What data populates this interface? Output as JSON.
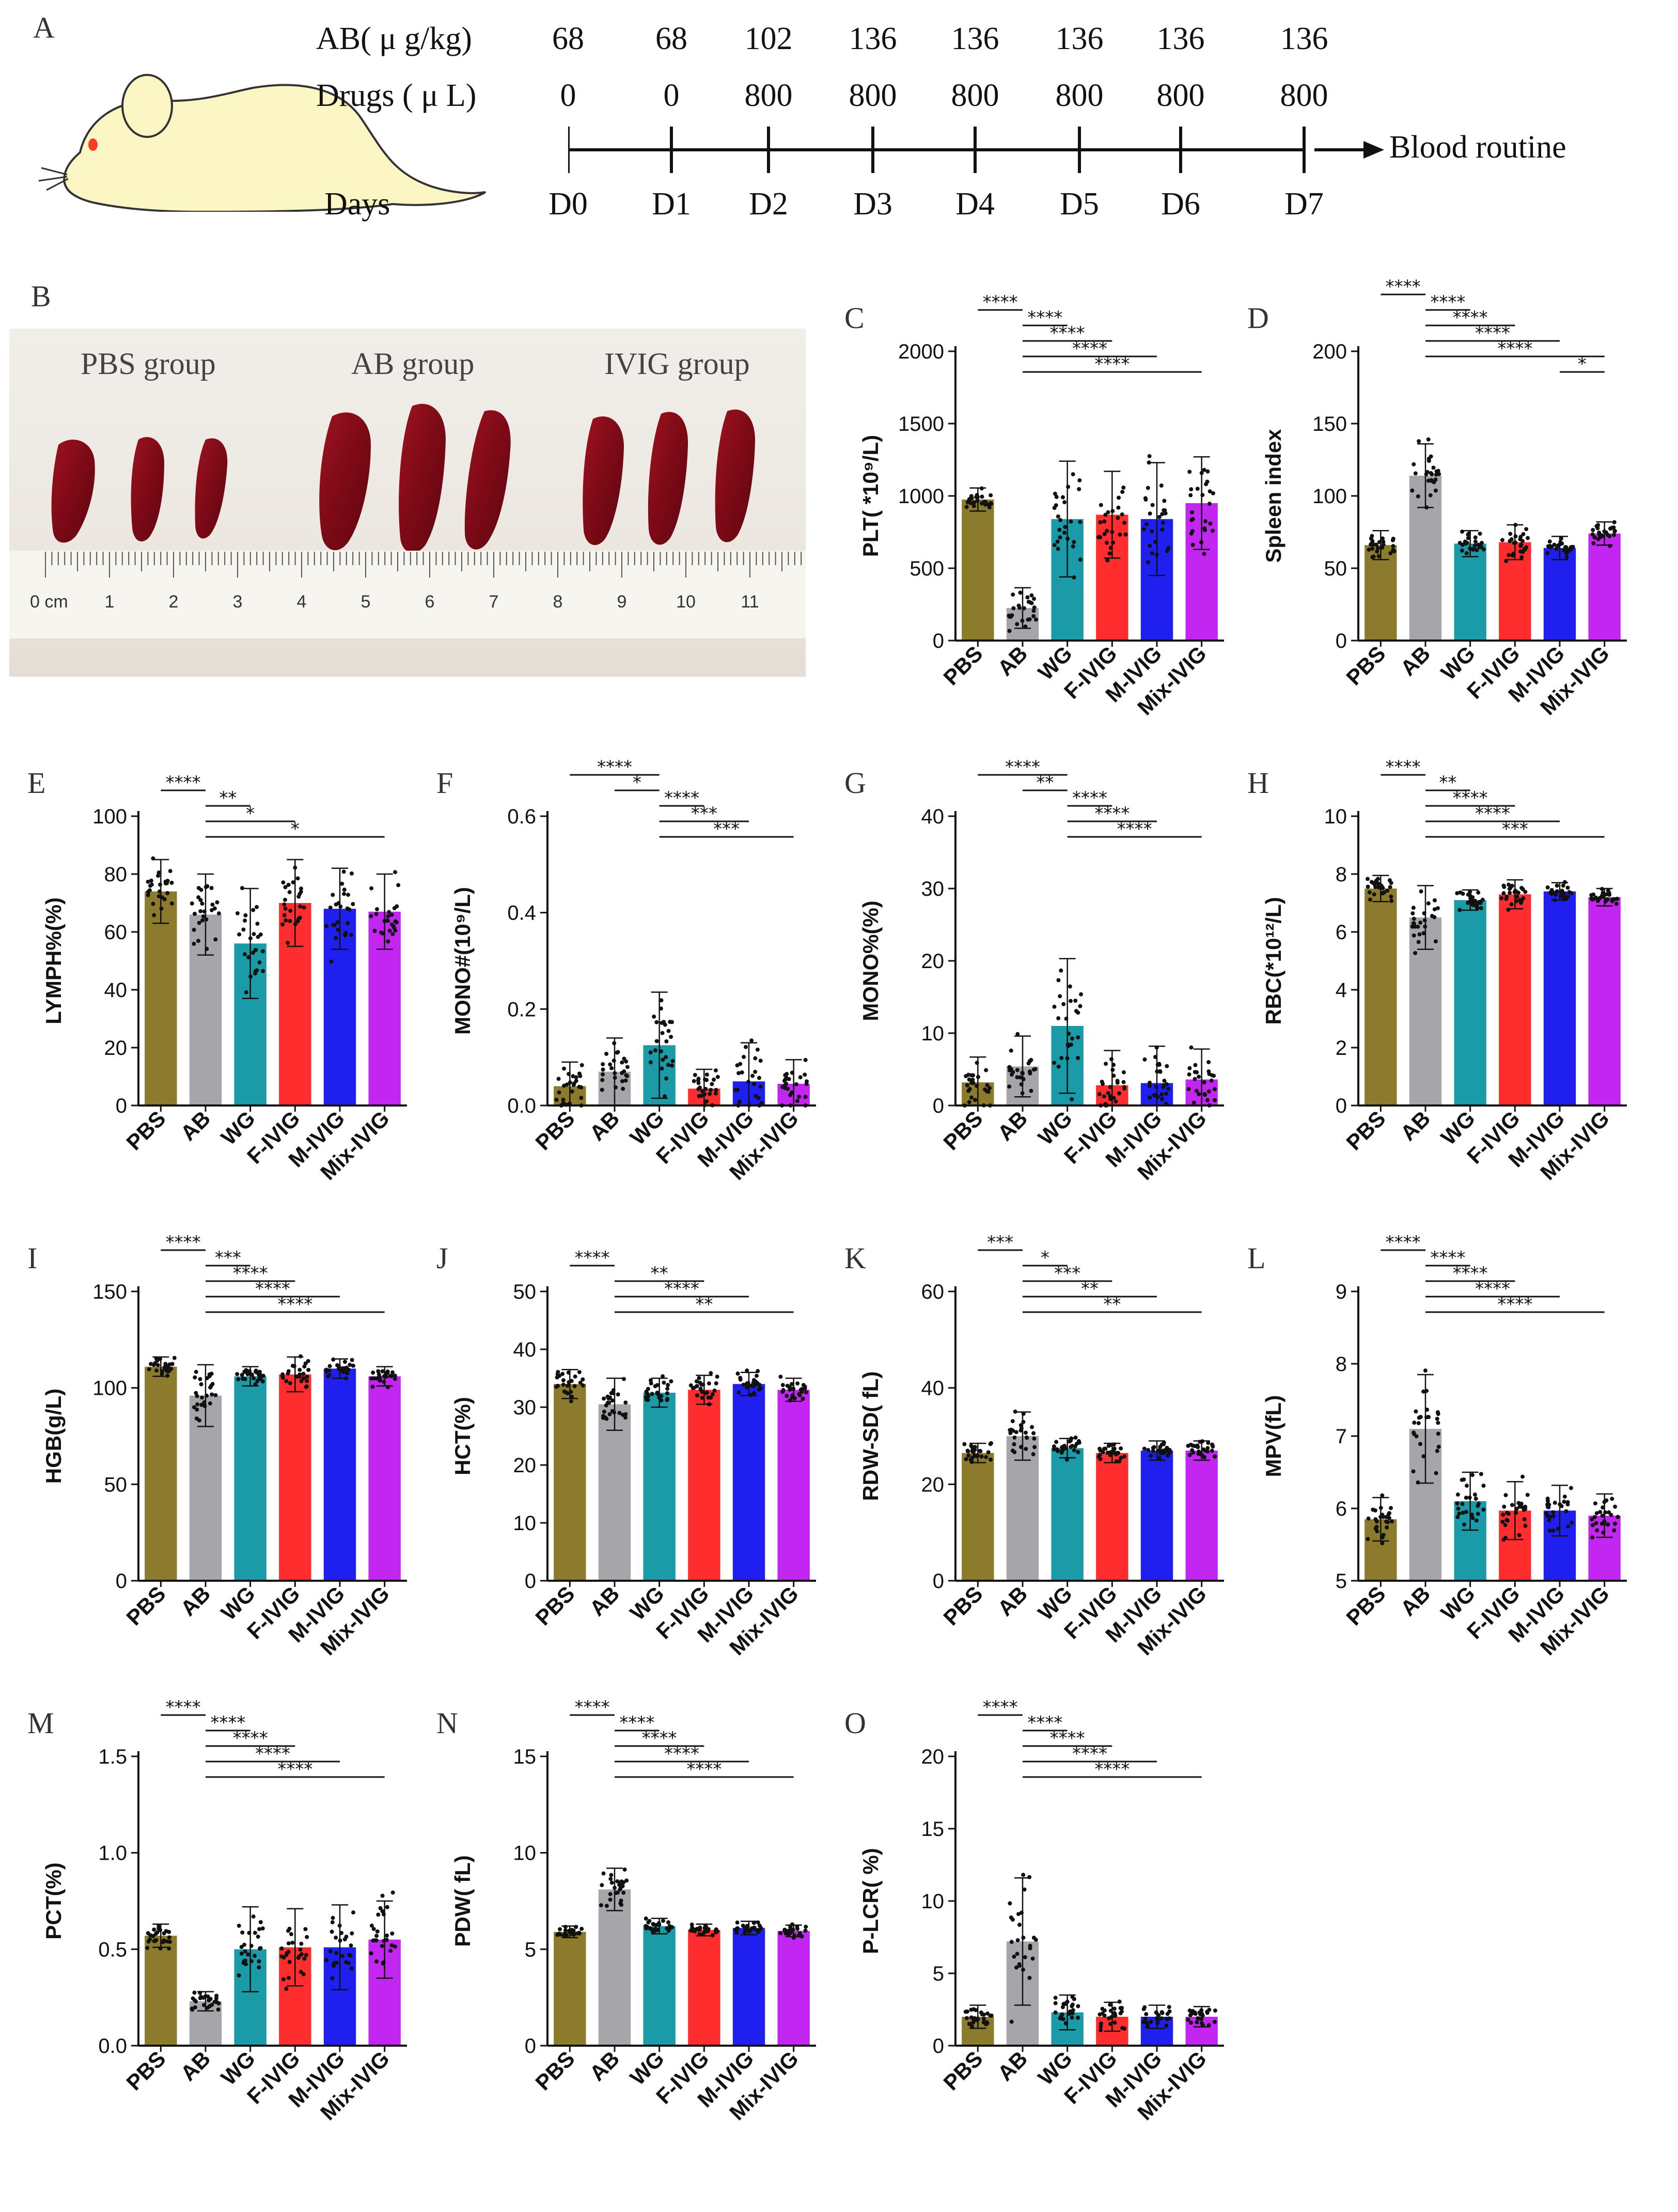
{
  "figure": {
    "panel_a": {
      "letter": "A",
      "ab_label": "AB( μ g/kg)",
      "drugs_label": "Drugs ( μ L)",
      "days_label": "Days",
      "ab_values": [
        "68",
        "68",
        "102",
        "136",
        "136",
        "136",
        "136",
        "136"
      ],
      "drug_values": [
        "0",
        "0",
        "800",
        "800",
        "800",
        "800",
        "800",
        "800"
      ],
      "days": [
        "D0",
        "D1",
        "D2",
        "D3",
        "D4",
        "D5",
        "D6",
        "D7"
      ],
      "endpoint": "Blood routine"
    },
    "panel_b": {
      "letter": "B",
      "groups": [
        "PBS group",
        "AB group",
        "IVIG group"
      ],
      "ruler_unit": "0 cm",
      "ruler_numbers": [
        "1",
        "2",
        "3",
        "4",
        "5",
        "6",
        "7",
        "8",
        "9",
        "10",
        "11"
      ]
    }
  },
  "colors": {
    "PBS": "#8c7b2c",
    "AB": "#a6a6aa",
    "WG": "#1b9aa8",
    "F-IVIG": "#ff2d2d",
    "M-IVIG": "#1f1ff0",
    "Mix-IVIG": "#c326f0"
  },
  "chart_data": [
    {
      "id": "C",
      "letter": "C",
      "type": "bar",
      "ylabel": "PLT( *10⁹/L)",
      "ylim": [
        0,
        2000
      ],
      "yticks": [
        "0",
        "500",
        "1000",
        "1500",
        "2000"
      ],
      "categories": [
        "PBS",
        "AB",
        "WG",
        "F-IVIG",
        "M-IVIG",
        "Mix-IVIG"
      ],
      "values": [
        975,
        225,
        840,
        870,
        840,
        950
      ],
      "errors": [
        80,
        140,
        400,
        300,
        390,
        320
      ],
      "sig": [
        {
          "a": 0,
          "b": 1,
          "label": "****"
        },
        {
          "a": 1,
          "b": 2,
          "label": "****"
        },
        {
          "a": 1,
          "b": 3,
          "label": "****"
        },
        {
          "a": 1,
          "b": 4,
          "label": "****"
        },
        {
          "a": 1,
          "b": 5,
          "label": "****"
        }
      ]
    },
    {
      "id": "D",
      "letter": "D",
      "type": "bar",
      "ylabel": "Spleen index",
      "ylim": [
        0,
        200
      ],
      "yticks": [
        "0",
        "50",
        "100",
        "150",
        "200"
      ],
      "categories": [
        "PBS",
        "AB",
        "WG",
        "F-IVIG",
        "M-IVIG",
        "Mix-IVIG"
      ],
      "values": [
        66,
        114,
        67,
        68,
        64,
        74
      ],
      "errors": [
        10,
        22,
        9,
        12,
        8,
        8
      ],
      "sig": [
        {
          "a": 0,
          "b": 1,
          "label": "****"
        },
        {
          "a": 1,
          "b": 2,
          "label": "****"
        },
        {
          "a": 1,
          "b": 3,
          "label": "****"
        },
        {
          "a": 1,
          "b": 4,
          "label": "****"
        },
        {
          "a": 1,
          "b": 5,
          "label": "****"
        },
        {
          "a": 4,
          "b": 5,
          "label": "*"
        }
      ]
    },
    {
      "id": "E",
      "letter": "E",
      "type": "bar",
      "ylabel": "LYMPH%(%)",
      "ylim": [
        0,
        100
      ],
      "yticks": [
        "0",
        "20",
        "40",
        "60",
        "80",
        "100"
      ],
      "categories": [
        "PBS",
        "AB",
        "WG",
        "F-IVIG",
        "M-IVIG",
        "Mix-IVIG"
      ],
      "values": [
        74,
        66,
        56,
        70,
        68,
        67
      ],
      "errors": [
        11,
        14,
        19,
        15,
        14,
        13
      ],
      "sig": [
        {
          "a": 0,
          "b": 1,
          "label": "****"
        },
        {
          "a": 1,
          "b": 2,
          "label": "**"
        },
        {
          "a": 1,
          "b": 3,
          "label": "*"
        },
        {
          "a": 1,
          "b": 5,
          "label": "*"
        }
      ]
    },
    {
      "id": "F",
      "letter": "F",
      "type": "bar",
      "ylabel": "MONO#(10⁹/L)",
      "ylim": [
        0,
        0.6
      ],
      "yticks": [
        "0.0",
        "0.2",
        "0.4",
        "0.6"
      ],
      "categories": [
        "PBS",
        "AB",
        "WG",
        "F-IVIG",
        "M-IVIG",
        "Mix-IVIG"
      ],
      "values": [
        0.04,
        0.07,
        0.125,
        0.035,
        0.05,
        0.045
      ],
      "errors": [
        0.05,
        0.07,
        0.11,
        0.04,
        0.08,
        0.05
      ],
      "sig": [
        {
          "a": 0,
          "b": 2,
          "label": "****"
        },
        {
          "a": 1,
          "b": 2,
          "label": "*"
        },
        {
          "a": 2,
          "b": 3,
          "label": "****"
        },
        {
          "a": 2,
          "b": 4,
          "label": "***"
        },
        {
          "a": 2,
          "b": 5,
          "label": "***"
        }
      ]
    },
    {
      "id": "G",
      "letter": "G",
      "type": "bar",
      "ylabel": "MONO%(%)",
      "ylim": [
        0,
        40
      ],
      "yticks": [
        "0",
        "10",
        "20",
        "30",
        "40"
      ],
      "categories": [
        "PBS",
        "AB",
        "WG",
        "F-IVIG",
        "M-IVIG",
        "Mix-IVIG"
      ],
      "values": [
        3.2,
        5.4,
        11,
        2.8,
        3.1,
        3.6
      ],
      "errors": [
        3.5,
        4.2,
        9.3,
        4.8,
        5.1,
        4.2
      ],
      "sig": [
        {
          "a": 0,
          "b": 2,
          "label": "****"
        },
        {
          "a": 1,
          "b": 2,
          "label": "**"
        },
        {
          "a": 2,
          "b": 3,
          "label": "****"
        },
        {
          "a": 2,
          "b": 4,
          "label": "****"
        },
        {
          "a": 2,
          "b": 5,
          "label": "****"
        }
      ]
    },
    {
      "id": "H",
      "letter": "H",
      "type": "bar",
      "ylabel": "RBC(*10¹²/L)",
      "ylim": [
        0,
        10
      ],
      "yticks": [
        "0",
        "2",
        "4",
        "6",
        "8",
        "10"
      ],
      "categories": [
        "PBS",
        "AB",
        "WG",
        "F-IVIG",
        "M-IVIG",
        "Mix-IVIG"
      ],
      "values": [
        7.5,
        6.5,
        7.1,
        7.3,
        7.4,
        7.2
      ],
      "errors": [
        0.45,
        1.1,
        0.35,
        0.5,
        0.3,
        0.3
      ],
      "sig": [
        {
          "a": 0,
          "b": 1,
          "label": "****"
        },
        {
          "a": 1,
          "b": 2,
          "label": "**"
        },
        {
          "a": 1,
          "b": 3,
          "label": "****"
        },
        {
          "a": 1,
          "b": 4,
          "label": "****"
        },
        {
          "a": 1,
          "b": 5,
          "label": "***"
        }
      ]
    },
    {
      "id": "I",
      "letter": "I",
      "type": "bar",
      "ylabel": "HGB(g/L)",
      "ylim": [
        0,
        150
      ],
      "yticks": [
        "0",
        "50",
        "100",
        "150"
      ],
      "categories": [
        "PBS",
        "AB",
        "WG",
        "F-IVIG",
        "M-IVIG",
        "Mix-IVIG"
      ],
      "values": [
        111,
        96,
        106,
        107,
        110,
        106
      ],
      "errors": [
        5,
        16,
        5,
        9,
        5,
        5
      ],
      "sig": [
        {
          "a": 0,
          "b": 1,
          "label": "****"
        },
        {
          "a": 1,
          "b": 2,
          "label": "***"
        },
        {
          "a": 1,
          "b": 3,
          "label": "****"
        },
        {
          "a": 1,
          "b": 4,
          "label": "****"
        },
        {
          "a": 1,
          "b": 5,
          "label": "****"
        }
      ]
    },
    {
      "id": "J",
      "letter": "J",
      "type": "bar",
      "ylabel": "HCT(%)",
      "ylim": [
        0,
        50
      ],
      "yticks": [
        "0",
        "10",
        "20",
        "30",
        "40",
        "50"
      ],
      "categories": [
        "PBS",
        "AB",
        "WG",
        "F-IVIG",
        "M-IVIG",
        "Mix-IVIG"
      ],
      "values": [
        34,
        30.5,
        32.5,
        33,
        34,
        33
      ],
      "errors": [
        2.5,
        4.5,
        2.5,
        2.5,
        2,
        2
      ],
      "sig": [
        {
          "a": 0,
          "b": 1,
          "label": "****"
        },
        {
          "a": 1,
          "b": 3,
          "label": "**"
        },
        {
          "a": 1,
          "b": 4,
          "label": "****"
        },
        {
          "a": 1,
          "b": 5,
          "label": "**"
        }
      ]
    },
    {
      "id": "K",
      "letter": "K",
      "type": "bar",
      "ylabel": "RDW-SD( fL)",
      "ylim": [
        0,
        60
      ],
      "yticks": [
        "0",
        "20",
        "40",
        "60"
      ],
      "categories": [
        "PBS",
        "AB",
        "WG",
        "F-IVIG",
        "M-IVIG",
        "Mix-IVIG"
      ],
      "values": [
        26.5,
        30,
        27.5,
        26.5,
        27,
        27
      ],
      "errors": [
        2,
        5,
        2,
        2,
        2,
        2
      ],
      "sig": [
        {
          "a": 0,
          "b": 1,
          "label": "***"
        },
        {
          "a": 1,
          "b": 2,
          "label": "*"
        },
        {
          "a": 1,
          "b": 3,
          "label": "***"
        },
        {
          "a": 1,
          "b": 4,
          "label": "**"
        },
        {
          "a": 1,
          "b": 5,
          "label": "**"
        }
      ]
    },
    {
      "id": "L",
      "letter": "L",
      "type": "bar",
      "ylabel": "MPV(fL)",
      "ylim": [
        5,
        9
      ],
      "yticks": [
        "5",
        "6",
        "7",
        "8",
        "9"
      ],
      "categories": [
        "PBS",
        "AB",
        "WG",
        "F-IVIG",
        "M-IVIG",
        "Mix-IVIG"
      ],
      "values": [
        5.85,
        7.1,
        6.1,
        5.97,
        5.97,
        5.9
      ],
      "errors": [
        0.3,
        0.75,
        0.4,
        0.4,
        0.35,
        0.3
      ],
      "sig": [
        {
          "a": 0,
          "b": 1,
          "label": "****"
        },
        {
          "a": 1,
          "b": 2,
          "label": "****"
        },
        {
          "a": 1,
          "b": 3,
          "label": "****"
        },
        {
          "a": 1,
          "b": 4,
          "label": "****"
        },
        {
          "a": 1,
          "b": 5,
          "label": "****"
        }
      ]
    },
    {
      "id": "M",
      "letter": "M",
      "type": "bar",
      "ylabel": "PCT(%)",
      "ylim": [
        0,
        1.5
      ],
      "yticks": [
        "0.0",
        "0.5",
        "1.0",
        "1.5"
      ],
      "categories": [
        "PBS",
        "AB",
        "WG",
        "F-IVIG",
        "M-IVIG",
        "Mix-IVIG"
      ],
      "values": [
        0.57,
        0.23,
        0.5,
        0.51,
        0.51,
        0.55
      ],
      "errors": [
        0.06,
        0.05,
        0.22,
        0.2,
        0.22,
        0.2
      ],
      "sig": [
        {
          "a": 0,
          "b": 1,
          "label": "****"
        },
        {
          "a": 1,
          "b": 2,
          "label": "****"
        },
        {
          "a": 1,
          "b": 3,
          "label": "****"
        },
        {
          "a": 1,
          "b": 4,
          "label": "****"
        },
        {
          "a": 1,
          "b": 5,
          "label": "****"
        }
      ]
    },
    {
      "id": "N",
      "letter": "N",
      "type": "bar",
      "ylabel": "PDW( fL)",
      "ylim": [
        0,
        15
      ],
      "yticks": [
        "0",
        "5",
        "10",
        "15"
      ],
      "categories": [
        "PBS",
        "AB",
        "WG",
        "F-IVIG",
        "M-IVIG",
        "Mix-IVIG"
      ],
      "values": [
        5.9,
        8.1,
        6.2,
        6.0,
        6.1,
        5.95
      ],
      "errors": [
        0.3,
        1.1,
        0.4,
        0.3,
        0.35,
        0.3
      ],
      "sig": [
        {
          "a": 0,
          "b": 1,
          "label": "****"
        },
        {
          "a": 1,
          "b": 2,
          "label": "****"
        },
        {
          "a": 1,
          "b": 3,
          "label": "****"
        },
        {
          "a": 1,
          "b": 4,
          "label": "****"
        },
        {
          "a": 1,
          "b": 5,
          "label": "****"
        }
      ]
    },
    {
      "id": "O",
      "letter": "O",
      "type": "bar",
      "ylabel": "P-LCR( %)",
      "ylim": [
        0,
        20
      ],
      "yticks": [
        "0",
        "5",
        "10",
        "15",
        "20"
      ],
      "categories": [
        "PBS",
        "AB",
        "WG",
        "F-IVIG",
        "M-IVIG",
        "Mix-IVIG"
      ],
      "values": [
        2.0,
        7.2,
        2.3,
        2.0,
        2.0,
        2.0
      ],
      "errors": [
        0.8,
        4.4,
        1.2,
        1.0,
        0.8,
        0.7
      ],
      "sig": [
        {
          "a": 0,
          "b": 1,
          "label": "****"
        },
        {
          "a": 1,
          "b": 2,
          "label": "****"
        },
        {
          "a": 1,
          "b": 3,
          "label": "****"
        },
        {
          "a": 1,
          "b": 4,
          "label": "****"
        },
        {
          "a": 1,
          "b": 5,
          "label": "****"
        }
      ]
    }
  ]
}
